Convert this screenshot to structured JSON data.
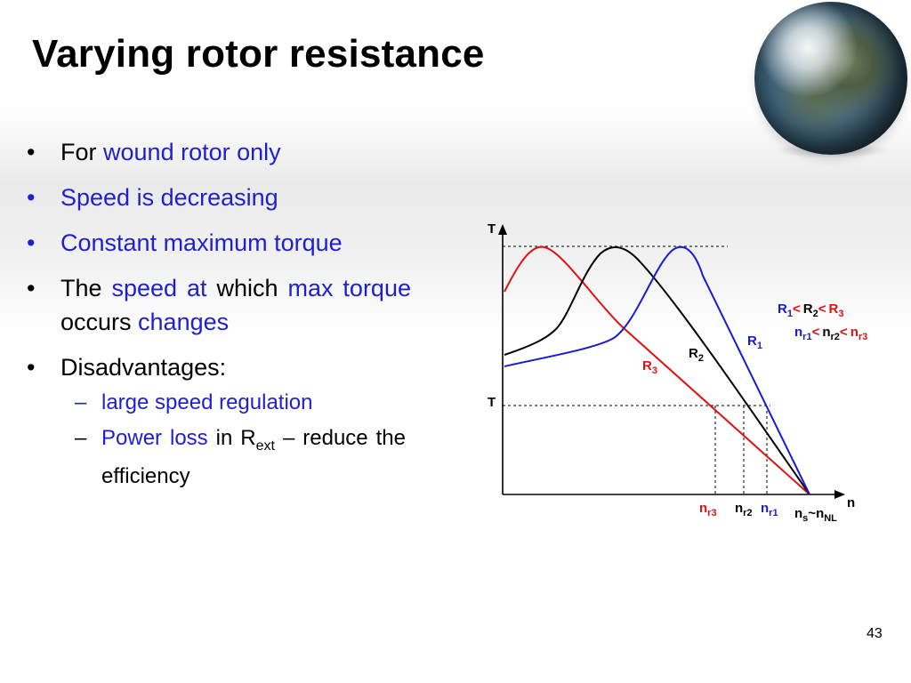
{
  "title": "Varying rotor resistance",
  "page_number": "43",
  "bullets": {
    "b1": {
      "prefix": "For ",
      "highlight": "wound rotor only"
    },
    "b2": {
      "text": "Speed is decreasing"
    },
    "b3": {
      "text": "Constant maximum torque"
    },
    "b4": {
      "p1": "The ",
      "h1": "speed at",
      "p2": " which ",
      "h2": "max torque",
      "p3": " occurs ",
      "h3": "changes"
    },
    "b5": {
      "text": "Disadvantages:"
    },
    "sub1": {
      "text": "large speed regulation"
    },
    "sub2": {
      "h1": "Power loss",
      "p1": " in R",
      "sub": "ext",
      "p2": " – reduce the efficiency"
    }
  },
  "diagram": {
    "y_axis_label": "T",
    "load_torque_label": "T",
    "x_axis_label": "n",
    "curve_labels": {
      "r3": {
        "main": "R",
        "sub": "3"
      },
      "r2": {
        "main": "R",
        "sub": "2"
      },
      "r1": {
        "main": "R",
        "sub": "1"
      }
    },
    "speed_labels": {
      "nr3": {
        "main": "n",
        "sub": "r3"
      },
      "nr2": {
        "main": "n",
        "sub": "r2"
      },
      "nr1": {
        "main": "n",
        "sub": "r1"
      },
      "ns": {
        "main1": "n",
        "sub1": "s",
        "tilde": "~",
        "main2": "n",
        "sub2": "NL"
      }
    },
    "relation1": {
      "a": "R",
      "as": "1",
      "lt1": "<",
      "b": "R",
      "bs": "2",
      "lt2": "<",
      "c": "R",
      "cs": "3"
    },
    "relation2": {
      "a": "n",
      "as": "r1",
      "lt1": "<",
      "b": "n",
      "bs": "r2",
      "lt2": "<",
      "c": "n",
      "cs": "r3"
    },
    "colors": {
      "r3": "#e01010",
      "r2": "#000000",
      "r1": "#1a1ad6"
    }
  }
}
